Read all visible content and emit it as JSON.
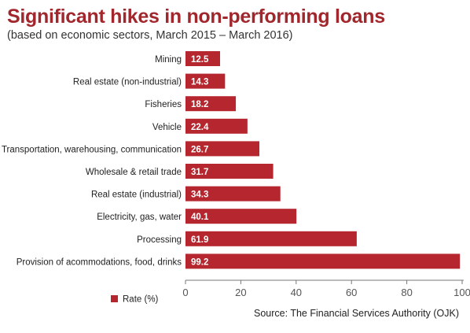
{
  "header": {
    "title": "Significant hikes in non-performing loans",
    "subtitle": "(based on economic sectors, March 2015 – March 2016)"
  },
  "footer": {
    "source": "Source: The Financial Services Authority (OJK)"
  },
  "colors": {
    "bar": "#b5262e",
    "title": "#a1272d",
    "axis": "#777777",
    "label_text": "#ffffff"
  },
  "chart_data": {
    "type": "bar",
    "orientation": "horizontal",
    "title": "Significant hikes in non-performing loans",
    "subtitle": "(based on economic sectors, March 2015 – March 2016)",
    "categories": [
      "Mining",
      "Real estate (non-industrial)",
      "Fisheries",
      "Vehicle",
      "Transportation, warehousing, communication",
      "Wholesale & retail trade",
      "Real estate (industrial)",
      "Electricity, gas, water",
      "Processing",
      "Provision of acommodations, food, drinks"
    ],
    "series": [
      {
        "name": "Rate (%)",
        "values": [
          12.5,
          14.3,
          18.2,
          22.4,
          26.7,
          31.7,
          34.3,
          40.1,
          61.9,
          99.2
        ]
      }
    ],
    "data_labels": [
      "12.5",
      "14.3",
      "18.2",
      "22.4",
      "26.7",
      "31.7",
      "34.3",
      "40.1",
      "61.9",
      "99.2"
    ],
    "xlim": [
      0,
      100
    ],
    "xticks": [
      "0",
      "20",
      "40",
      "60",
      "80",
      "100"
    ],
    "grid": false,
    "legend": {
      "position": "bottom-left",
      "entries": [
        "Rate (%)"
      ]
    }
  }
}
